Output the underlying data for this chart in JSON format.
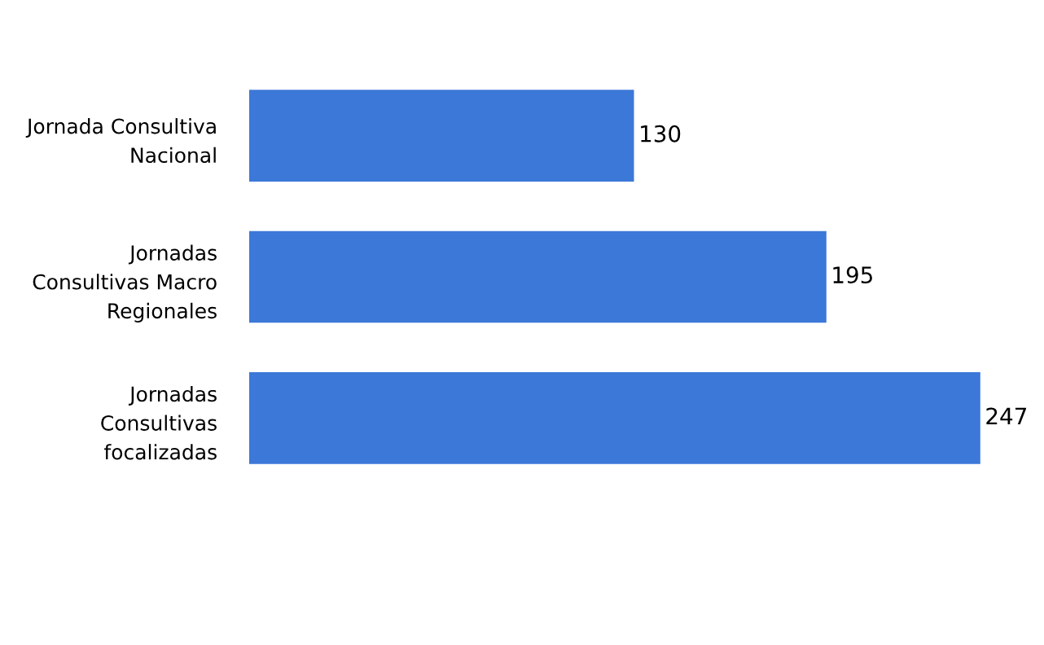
{
  "chart_data": {
    "type": "bar",
    "orientation": "horizontal",
    "categories": [
      "Jornada Consultiva\nNacional",
      "Jornadas\nConsultivas Macro\nRegionales",
      "Jornadas\nConsultivas\nfocalizadas"
    ],
    "values": [
      130,
      195,
      247
    ],
    "color": "#3c78d8",
    "data_labels": true,
    "grid": false,
    "legend": false
  }
}
